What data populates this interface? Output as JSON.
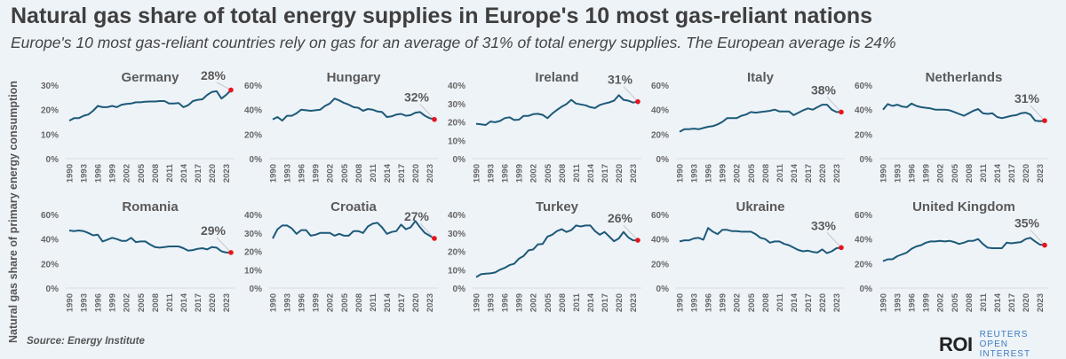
{
  "title": "Natural gas share of total energy supplies in Europe's 10 most gas-reliant nations",
  "subtitle": "Europe's 10 most gas-reliant countries rely on gas for an average of 31% of total energy supplies. The European average is 24%",
  "y_axis_label": "Natural gas share of primary energy consumption",
  "source": "Source:  Energy Institute",
  "logo": {
    "mark": "ROI",
    "text": "REUTERS OPEN INTEREST"
  },
  "colors": {
    "line": "#1d5a78",
    "endpoint": "#e8141c",
    "background": "#eef3f8"
  },
  "chart_data": {
    "type": "line",
    "small_multiples": true,
    "x": [
      1990,
      1991,
      1992,
      1993,
      1994,
      1995,
      1996,
      1997,
      1998,
      1999,
      2000,
      2001,
      2002,
      2003,
      2004,
      2005,
      2006,
      2007,
      2008,
      2009,
      2010,
      2011,
      2012,
      2013,
      2014,
      2015,
      2016,
      2017,
      2018,
      2019,
      2020,
      2021,
      2022,
      2023,
      2024
    ],
    "x_tick_labels": [
      "1990",
      "1993",
      "1996",
      "1999",
      "2002",
      "2005",
      "2008",
      "2011",
      "2014",
      "2017",
      "2020",
      "2023"
    ],
    "units": "%",
    "grid": false,
    "panels": [
      {
        "name": "Germany",
        "ylim": [
          0,
          30
        ],
        "yticks": [
          "0%",
          "10%",
          "20%",
          "30%"
        ],
        "end_label": "28%",
        "values": [
          15.5,
          16.5,
          16.5,
          17.5,
          18,
          19.5,
          21.5,
          21,
          21,
          21.5,
          21,
          22,
          22.3,
          22.5,
          23,
          23,
          23.2,
          23.3,
          23.3,
          23.5,
          23.5,
          22.5,
          22.5,
          22.7,
          21,
          21.8,
          23.5,
          24,
          24.2,
          26,
          27.2,
          27.5,
          24.5,
          26,
          28
        ]
      },
      {
        "name": "Hungary",
        "ylim": [
          0,
          60
        ],
        "yticks": [
          "0%",
          "20%",
          "40%",
          "60%"
        ],
        "end_label": "32%",
        "values": [
          32,
          34,
          31,
          35,
          35,
          37,
          40,
          39.5,
          39,
          39.5,
          40,
          43,
          45,
          49,
          47.5,
          45.5,
          44,
          42,
          41.5,
          39,
          40.5,
          40,
          38.5,
          38,
          34,
          34.5,
          36,
          36.5,
          35,
          35.5,
          37.5,
          38,
          35,
          33,
          32
        ]
      },
      {
        "name": "Ireland",
        "ylim": [
          0,
          40
        ],
        "yticks": [
          "0%",
          "10%",
          "20%",
          "30%",
          "40%"
        ],
        "end_label": "31%",
        "values": [
          19,
          18.7,
          18.3,
          20.2,
          19.8,
          20.5,
          22,
          22.5,
          21,
          21.2,
          23.3,
          23.3,
          24.2,
          24.4,
          23.8,
          22,
          24.5,
          26.5,
          28.3,
          29.7,
          32,
          30,
          29.5,
          29,
          28,
          27.5,
          29.2,
          30,
          30.6,
          31.5,
          34.5,
          32,
          31.5,
          30.5,
          31
        ]
      },
      {
        "name": "Italy",
        "ylim": [
          0,
          60
        ],
        "yticks": [
          "0%",
          "20%",
          "40%",
          "60%"
        ],
        "end_label": "38%",
        "values": [
          22,
          24,
          24,
          24.5,
          24,
          25,
          26,
          26.5,
          28,
          30,
          33,
          33,
          33,
          35,
          36,
          38,
          37.5,
          38,
          38.5,
          39,
          40,
          38.5,
          38.5,
          38.5,
          35.5,
          37.5,
          39.5,
          41,
          40,
          42,
          44,
          44,
          40,
          38,
          38
        ]
      },
      {
        "name": "Netherlands",
        "ylim": [
          0,
          60
        ],
        "yticks": [
          "0%",
          "20%",
          "40%",
          "60%"
        ],
        "end_label": "31%",
        "values": [
          40,
          44.5,
          43,
          44,
          42.5,
          42,
          45,
          43,
          42,
          41.5,
          41,
          40,
          40,
          40,
          39.5,
          38,
          36.5,
          35,
          37,
          39,
          40.5,
          37,
          36.5,
          37,
          34,
          33,
          34,
          35,
          35.5,
          37,
          37.5,
          36,
          31,
          30.5,
          31
        ]
      },
      {
        "name": "Romania",
        "ylim": [
          0,
          60
        ],
        "yticks": [
          "0%",
          "20%",
          "40%",
          "60%"
        ],
        "end_label": "29%",
        "values": [
          47,
          46.5,
          47,
          46.5,
          45,
          43,
          43.5,
          38,
          39.5,
          41,
          40,
          38.5,
          38.5,
          41,
          37.5,
          38,
          38,
          35.5,
          33.5,
          33,
          33.5,
          34,
          34,
          34,
          32.5,
          30.5,
          31,
          32,
          32.5,
          31.5,
          33.5,
          33,
          30,
          29,
          29
        ]
      },
      {
        "name": "Croatia",
        "ylim": [
          0,
          40
        ],
        "yticks": [
          "0%",
          "10%",
          "20%",
          "30%",
          "40%"
        ],
        "end_label": "27%",
        "values": [
          27,
          32,
          34,
          34,
          32.5,
          29.5,
          31.5,
          31.5,
          28.5,
          29,
          30,
          30,
          30,
          28.5,
          29.5,
          28.5,
          28.5,
          31,
          31,
          30,
          33.5,
          35,
          35.5,
          33,
          29.5,
          30.5,
          31,
          34.5,
          32,
          33,
          36.5,
          33,
          30,
          28.5,
          27
        ]
      },
      {
        "name": "Turkey",
        "ylim": [
          0,
          40
        ],
        "yticks": [
          "0%",
          "10%",
          "20%",
          "30%",
          "40%"
        ],
        "end_label": "26%",
        "values": [
          6,
          7.5,
          7.8,
          8,
          8.5,
          10,
          11,
          12.5,
          13.2,
          16,
          17.5,
          20.5,
          21,
          23.8,
          24,
          28,
          29,
          31,
          32,
          30.5,
          31.5,
          34,
          33.5,
          34,
          34,
          31,
          29,
          30.5,
          28,
          25.5,
          27,
          30.5,
          27.5,
          26,
          26
        ]
      },
      {
        "name": "Ukraine",
        "ylim": [
          0,
          60
        ],
        "yticks": [
          "0%",
          "20%",
          "40%",
          "60%"
        ],
        "end_label": "33%",
        "values": [
          38,
          39,
          39,
          40.5,
          41,
          39.5,
          49,
          46,
          44,
          47.5,
          47.5,
          46.5,
          46.5,
          46,
          46,
          46,
          44,
          41,
          40,
          37,
          38,
          38,
          36,
          35,
          33,
          31,
          30,
          30.5,
          29.5,
          29,
          31.5,
          28.5,
          30,
          32.5,
          33
        ]
      },
      {
        "name": "United Kingdom",
        "ylim": [
          0,
          60
        ],
        "yticks": [
          "0%",
          "20%",
          "40%",
          "60%"
        ],
        "end_label": "35%",
        "values": [
          22,
          23.5,
          23.5,
          26,
          27.5,
          29,
          32,
          34,
          35,
          37,
          38,
          38,
          38.5,
          38,
          38.5,
          37.5,
          36,
          37,
          38.5,
          38.5,
          40,
          36,
          33,
          32.5,
          32.5,
          32.5,
          37,
          36.5,
          37,
          37.5,
          40,
          41,
          38,
          35.5,
          35
        ]
      }
    ]
  }
}
